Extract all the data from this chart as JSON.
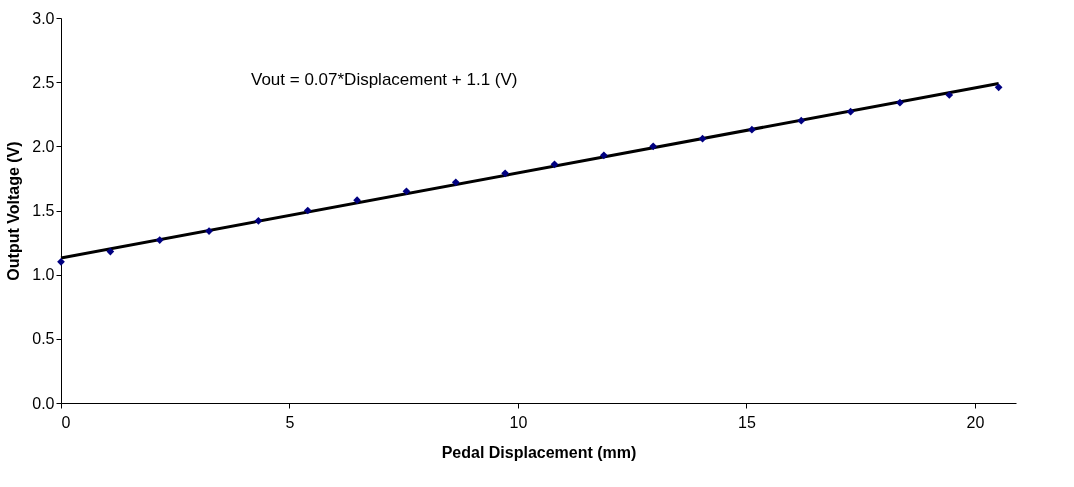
{
  "chart_data": {
    "type": "scatter",
    "xlabel": "Pedal Displacement (mm)",
    "ylabel": "Output Voltage (V)",
    "xlim": [
      0,
      20.9
    ],
    "xticks": [
      0,
      5,
      10,
      15,
      20
    ],
    "ylim": [
      0,
      3
    ],
    "yticks": [
      {
        "value": 0,
        "label": "0.0"
      },
      {
        "value": 0.5,
        "label": "0.5"
      },
      {
        "value": 1,
        "label": "1.0"
      },
      {
        "value": 1.5,
        "label": "1.5"
      },
      {
        "value": 2,
        "label": "2.0"
      },
      {
        "value": 2.5,
        "label": "2.5"
      },
      {
        "value": 3,
        "label": "3.0"
      }
    ],
    "grid": false,
    "marker": "diamond",
    "annotations": [
      "Vout = 0.07*Displacement + 1.1 (V)"
    ],
    "series": [
      {
        "color": "#000080",
        "x": [
          0,
          1.08,
          2.16,
          3.24,
          4.32,
          5.4,
          6.48,
          7.56,
          8.64,
          9.72,
          10.8,
          11.88,
          12.96,
          14.04,
          15.12,
          16.2,
          17.28,
          18.36,
          19.44,
          20.52
        ],
        "values": [
          1.1,
          1.18,
          1.27,
          1.34,
          1.42,
          1.5,
          1.58,
          1.65,
          1.72,
          1.79,
          1.86,
          1.93,
          2.0,
          2.06,
          2.13,
          2.2,
          2.27,
          2.34,
          2.4,
          2.46
        ]
      },
      {
        "type": "line",
        "color": "#000000",
        "line_style": "solid",
        "marker": "none",
        "x": [
          0,
          20.52
        ],
        "values": [
          1.13,
          2.49
        ]
      }
    ]
  }
}
